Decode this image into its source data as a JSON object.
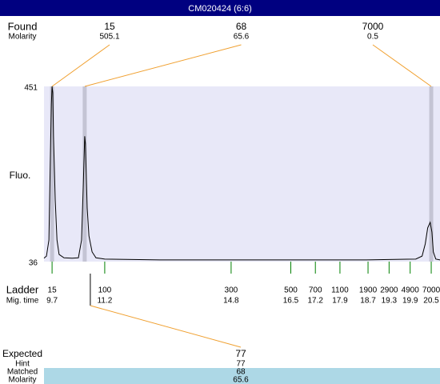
{
  "chart_data": {
    "type": "line",
    "title": "CM020424 (6:6)",
    "y_label": "Fluo.",
    "xlim": [
      9.47,
      20.75
    ],
    "ylim": [
      36,
      451
    ],
    "yticks": [
      36,
      451
    ],
    "color": "#000000",
    "x": [
      9.47,
      9.54,
      9.61,
      9.65,
      9.68,
      9.7,
      9.72,
      9.74,
      9.79,
      9.84,
      9.9,
      10.04,
      10.27,
      10.45,
      10.54,
      10.59,
      10.63,
      10.65,
      10.7,
      10.75,
      10.84,
      10.95,
      11.2,
      12.77,
      14.75,
      16.51,
      18.65,
      20.06,
      20.24,
      20.33,
      20.4,
      20.47,
      20.52,
      20.56,
      20.63,
      20.75
    ],
    "values": [
      44,
      49,
      87,
      277,
      409,
      451,
      436,
      333,
      182,
      87,
      53,
      45,
      44,
      45,
      87,
      220,
      333,
      315,
      163,
      97,
      59,
      45,
      42,
      40,
      40,
      40,
      40,
      42,
      49,
      78,
      116,
      129,
      106,
      59,
      42,
      40
    ],
    "found": {
      "label": "Found",
      "molarity_label": "Molarity",
      "peaks": [
        {
          "size": 15,
          "molarity": 505.1,
          "time": 9.7
        },
        {
          "size": 68,
          "molarity": 65.6,
          "time": 10.63
        },
        {
          "size": 7000,
          "molarity": 0.5,
          "time": 20.5
        }
      ]
    },
    "ladder": {
      "label": "Ladder",
      "time_label": "Mig. time",
      "color": "#008000",
      "sizes": [
        15,
        100,
        300,
        500,
        700,
        1100,
        1900,
        2900,
        4900,
        7000
      ],
      "times": [
        9.7,
        11.2,
        14.8,
        16.5,
        17.2,
        17.9,
        18.7,
        19.3,
        19.9,
        20.5
      ]
    },
    "expected": {
      "label": "Expected",
      "value": 77,
      "hint_label": "Hint",
      "hint": 77,
      "matched_label": "Matched",
      "matched": 68,
      "molarity_label": "Molarity",
      "molarity": 65.6
    }
  }
}
